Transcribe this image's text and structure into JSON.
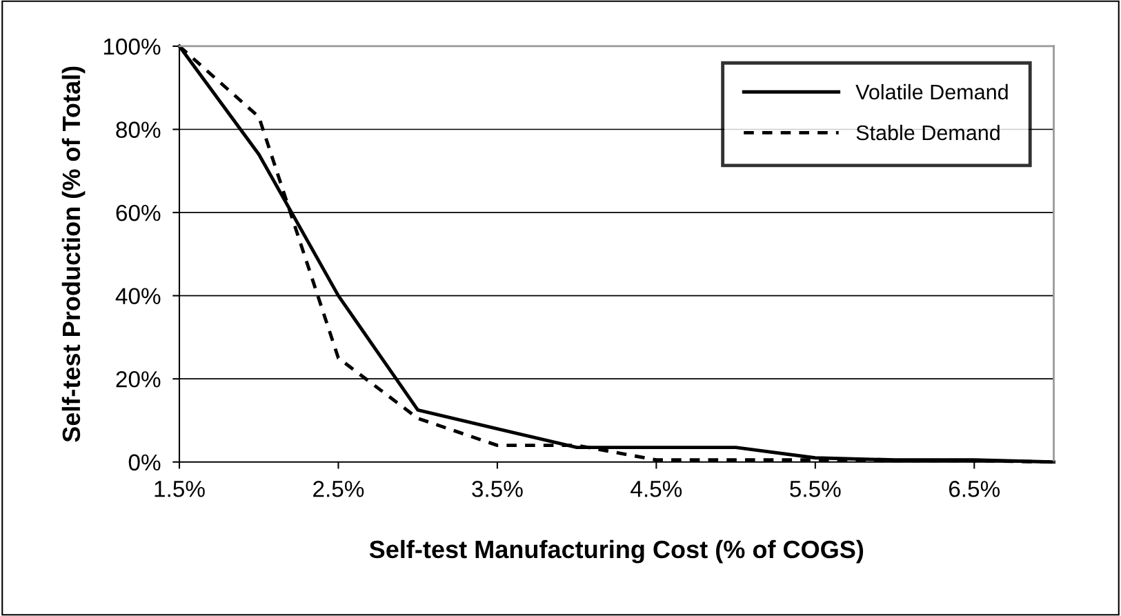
{
  "chart_data": {
    "type": "line",
    "xlabel": "Self-test Manufacturing Cost (% of COGS)",
    "ylabel": "Self-test Production (% of Total)",
    "x": [
      1.5,
      2.0,
      2.5,
      3.0,
      3.5,
      4.0,
      4.5,
      5.0,
      5.5,
      6.0,
      6.5,
      7.0
    ],
    "series": [
      {
        "name": "Volatile Demand",
        "color": "#000000",
        "line_style": "solid",
        "values": [
          100,
          74,
          40,
          12.5,
          8,
          3.5,
          3.5,
          3.5,
          1,
          0.5,
          0.5,
          0
        ]
      },
      {
        "name": "Stable Demand",
        "color": "#000000",
        "line_style": "dashed",
        "values": [
          100,
          83,
          25,
          10.5,
          4,
          4,
          0.5,
          0.5,
          0.5,
          0.3,
          0.3,
          0
        ]
      }
    ],
    "xlim": [
      1.5,
      7.0
    ],
    "xticks": [
      {
        "value": 1.5,
        "label": "1.5%"
      },
      {
        "value": 2.5,
        "label": "2.5%"
      },
      {
        "value": 3.5,
        "label": "3.5%"
      },
      {
        "value": 4.5,
        "label": "4.5%"
      },
      {
        "value": 5.5,
        "label": "5.5%"
      },
      {
        "value": 6.5,
        "label": "6.5%"
      }
    ],
    "ylim": [
      0,
      100
    ],
    "yticks": [
      {
        "value": 0,
        "label": "0%"
      },
      {
        "value": 20,
        "label": "20%"
      },
      {
        "value": 40,
        "label": "40%"
      },
      {
        "value": 60,
        "label": "60%"
      },
      {
        "value": 80,
        "label": "80%"
      },
      {
        "value": 100,
        "label": "100%"
      }
    ],
    "grid": "y",
    "legend": "top right",
    "marker": "none"
  }
}
